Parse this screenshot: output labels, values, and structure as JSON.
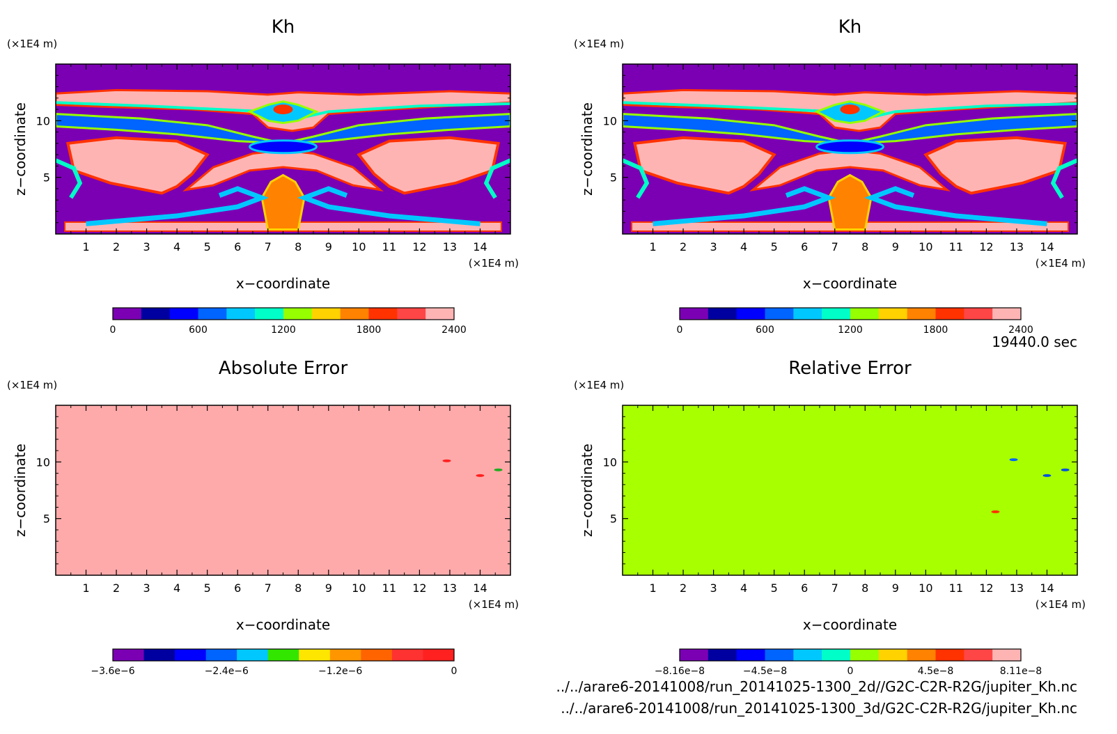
{
  "time_label": "19440.0 sec",
  "files": [
    "../../arare6-20141008/run_20141025-1300_2d//G2C-C2R-R2G/jupiter_Kh.nc",
    "../../arare6-20141008/run_20141025-1300_3d/G2C-C2R-R2G/jupiter_Kh.nc"
  ],
  "chart_data": [
    {
      "type": "heatmap",
      "title": "Kh",
      "xlabel": "x−coordinate",
      "ylabel": "z−coordinate",
      "x_unit": "(×1E4 m)",
      "y_unit": "(×1E4 m)",
      "xlim": [
        0,
        15
      ],
      "ylim": [
        0,
        15
      ],
      "xticks": [
        "1",
        "2",
        "3",
        "4",
        "5",
        "6",
        "7",
        "8",
        "9",
        "10",
        "11",
        "12",
        "13",
        "14"
      ],
      "yticks": [
        "5",
        "10"
      ],
      "colorbar": {
        "ticks": [
          "0",
          "600",
          "1200",
          "1800",
          "2400"
        ],
        "colors": [
          "#7b00b4",
          "#0000a0",
          "#0000ff",
          "#0064ff",
          "#00c8ff",
          "#00ffc8",
          "#96ff00",
          "#ffd200",
          "#ff8200",
          "#ff3200",
          "#ff4646",
          "#ffb4b4"
        ]
      }
    },
    {
      "type": "heatmap",
      "title": "Kh",
      "xlabel": "x−coordinate",
      "ylabel": "z−coordinate",
      "x_unit": "(×1E4 m)",
      "y_unit": "(×1E4 m)",
      "xlim": [
        0,
        15
      ],
      "ylim": [
        0,
        15
      ],
      "xticks": [
        "1",
        "2",
        "3",
        "4",
        "5",
        "6",
        "7",
        "8",
        "9",
        "10",
        "11",
        "12",
        "13",
        "14"
      ],
      "yticks": [
        "5",
        "10"
      ],
      "colorbar": {
        "ticks": [
          "0",
          "600",
          "1200",
          "1800",
          "2400"
        ],
        "colors": [
          "#7b00b4",
          "#0000a0",
          "#0000ff",
          "#0064ff",
          "#00c8ff",
          "#00ffc8",
          "#96ff00",
          "#ffd200",
          "#ff8200",
          "#ff3200",
          "#ff4646",
          "#ffb4b4"
        ]
      }
    },
    {
      "type": "heatmap",
      "title": "Absolute Error",
      "xlabel": "x−coordinate",
      "ylabel": "z−coordinate",
      "x_unit": "(×1E4 m)",
      "y_unit": "(×1E4 m)",
      "xlim": [
        0,
        15
      ],
      "ylim": [
        0,
        15
      ],
      "xticks": [
        "1",
        "2",
        "3",
        "4",
        "5",
        "6",
        "7",
        "8",
        "9",
        "10",
        "11",
        "12",
        "13",
        "14"
      ],
      "yticks": [
        "5",
        "10"
      ],
      "background_color": "#ffaaaa",
      "spots": [
        {
          "x": 12.9,
          "z": 10.1,
          "color": "#ff2020"
        },
        {
          "x": 14.0,
          "z": 8.8,
          "color": "#ff2020"
        },
        {
          "x": 14.6,
          "z": 9.3,
          "color": "#22aa22"
        }
      ],
      "colorbar": {
        "ticks": [
          "−3.6e−6",
          "−2.4e−6",
          "−1.2e−6",
          "0"
        ],
        "colors": [
          "#7b00b4",
          "#0000a0",
          "#0000ff",
          "#0064ff",
          "#00c8ff",
          "#32e600",
          "#ffe600",
          "#ff9600",
          "#ff6400",
          "#ff3232",
          "#ff2020"
        ]
      }
    },
    {
      "type": "heatmap",
      "title": "Relative Error",
      "xlabel": "x−coordinate",
      "ylabel": "z−coordinate",
      "x_unit": "(×1E4 m)",
      "y_unit": "(×1E4 m)",
      "xlim": [
        0,
        15
      ],
      "ylim": [
        0,
        15
      ],
      "xticks": [
        "1",
        "2",
        "3",
        "4",
        "5",
        "6",
        "7",
        "8",
        "9",
        "10",
        "11",
        "12",
        "13",
        "14"
      ],
      "yticks": [
        "5",
        "10"
      ],
      "background_color": "#a8ff00",
      "spots": [
        {
          "x": 12.9,
          "z": 10.2,
          "color": "#0064ff"
        },
        {
          "x": 14.0,
          "z": 8.8,
          "color": "#0050e0"
        },
        {
          "x": 14.6,
          "z": 9.3,
          "color": "#0050e0"
        },
        {
          "x": 12.3,
          "z": 5.6,
          "color": "#ff3200"
        }
      ],
      "colorbar": {
        "ticks": [
          "−8.16e−8",
          "−4.5e−8",
          "0",
          "4.5e−8",
          "8.11e−8"
        ],
        "colors": [
          "#7b00b4",
          "#0000a0",
          "#0000ff",
          "#0064ff",
          "#00c8ff",
          "#00ffc8",
          "#96ff00",
          "#ffd200",
          "#ff8200",
          "#ff3200",
          "#ff4646",
          "#ffb4b4"
        ]
      }
    }
  ]
}
